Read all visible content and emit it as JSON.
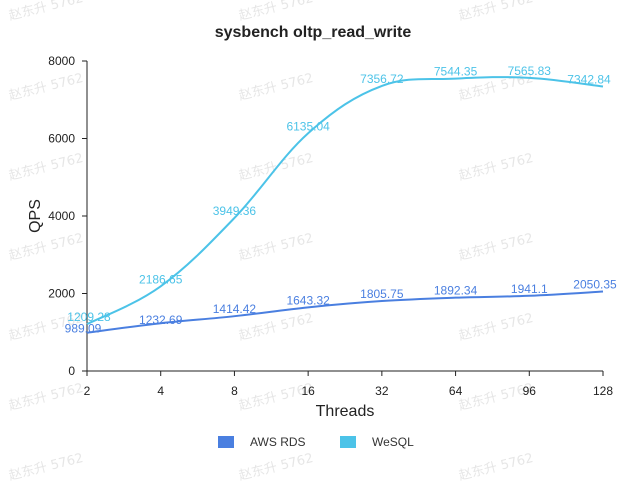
{
  "chart_data": {
    "type": "line",
    "title": "sysbench oltp_read_write",
    "xlabel": "Threads",
    "ylabel": "QPS",
    "categories": [
      "2",
      "4",
      "8",
      "16",
      "32",
      "64",
      "96",
      "128"
    ],
    "ylim": [
      0,
      8000
    ],
    "yticks": [
      0,
      2000,
      4000,
      6000,
      8000
    ],
    "grid": false,
    "legend_position": "bottom",
    "series": [
      {
        "name": "AWS RDS",
        "color": "#4a7fe0",
        "values": [
          989.09,
          1232.69,
          1414.42,
          1643.32,
          1805.75,
          1892.34,
          1941.1,
          2050.35
        ],
        "labels": [
          "989.09",
          "1232.69",
          "1414.42",
          "1643.32",
          "1805.75",
          "1892.34",
          "1941.1",
          "2050.35"
        ]
      },
      {
        "name": "WeSQL",
        "color": "#4cc3e8",
        "values": [
          1209.28,
          2186.65,
          3949.36,
          6135.04,
          7356.72,
          7544.35,
          7565.83,
          7342.84
        ],
        "labels": [
          "1209.28",
          "2186.65",
          "3949.36",
          "6135.04",
          "7356.72",
          "7544.35",
          "7565.83",
          "7342.84"
        ]
      }
    ]
  },
  "watermark": {
    "text": "赵东升 5762"
  }
}
